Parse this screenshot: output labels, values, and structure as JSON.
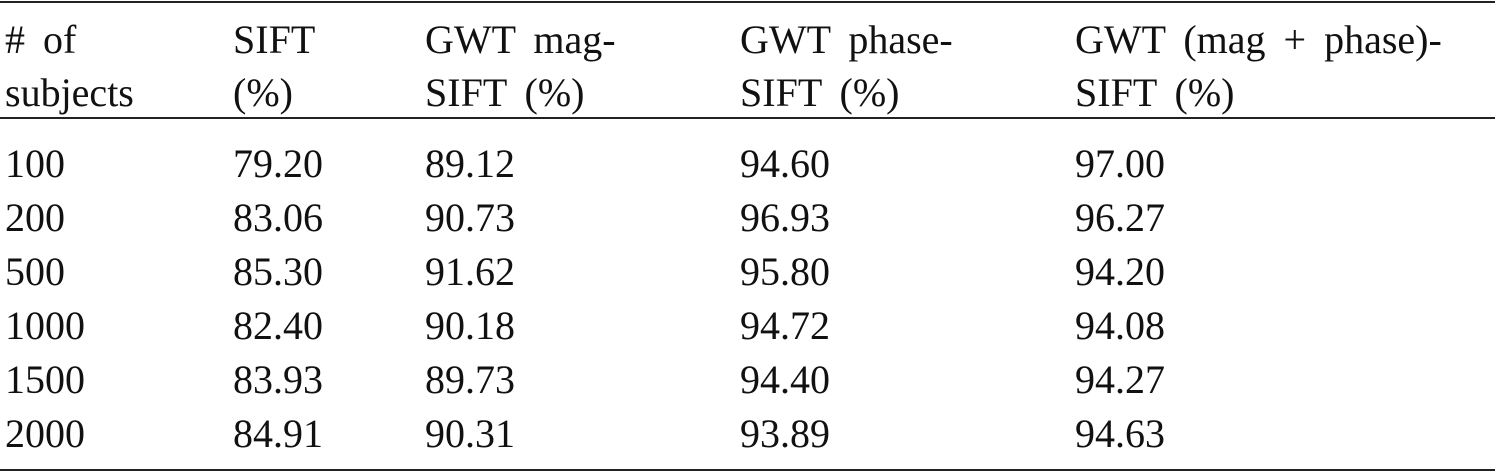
{
  "table": {
    "header": [
      [
        "# of",
        "subjects"
      ],
      [
        "SIFT",
        "(%)"
      ],
      [
        "GWT mag-",
        "SIFT (%)"
      ],
      [
        "GWT phase-",
        "SIFT (%)"
      ],
      [
        "GWT (mag + phase)-",
        "SIFT (%)"
      ]
    ],
    "rows": [
      [
        "100",
        "79.20",
        "89.12",
        "94.60",
        "97.00"
      ],
      [
        "200",
        "83.06",
        "90.73",
        "96.93",
        "96.27"
      ],
      [
        "500",
        "85.30",
        "91.62",
        "95.80",
        "94.20"
      ],
      [
        "1000",
        "82.40",
        "90.18",
        "94.72",
        "94.08"
      ],
      [
        "1500",
        "83.93",
        "89.73",
        "94.40",
        "94.27"
      ],
      [
        "2000",
        "84.91",
        "90.31",
        "93.89",
        "94.63"
      ]
    ]
  }
}
